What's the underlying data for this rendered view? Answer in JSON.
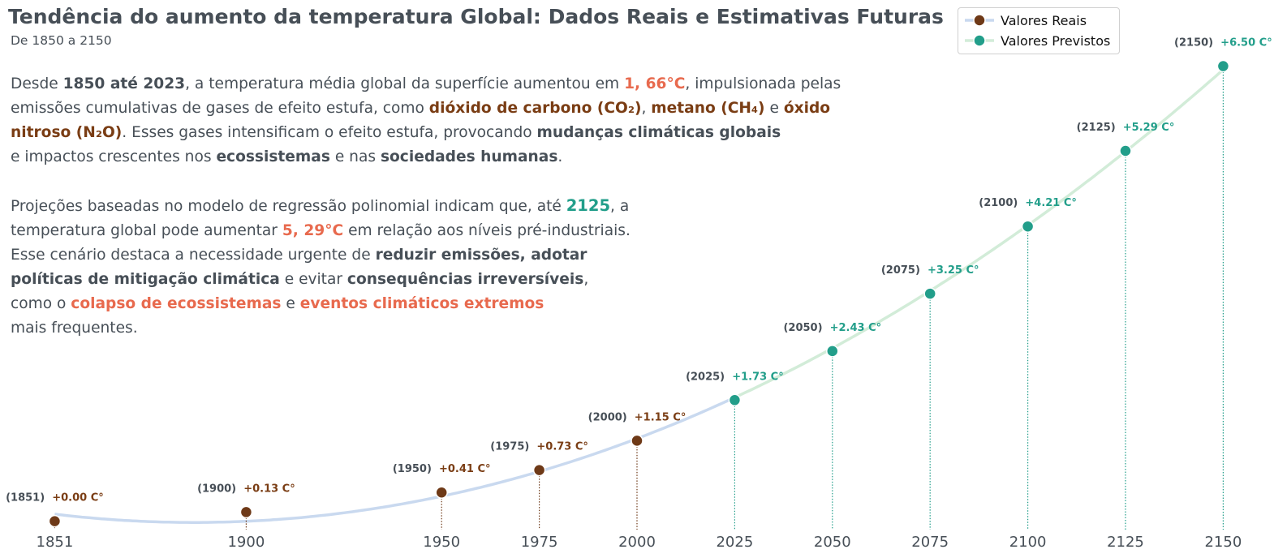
{
  "header": {
    "title": "Tendência do aumento da temperatura Global: Dados Reais e Estimativas Futuras",
    "subtitle": "De 1850 a 2150"
  },
  "text1": {
    "t0": "Desde ",
    "t1": "1850 até 2023",
    "t2": ", a temperatura média global da superfície aumentou em ",
    "t3": "1, 66°C",
    "t4": ", impulsionada pelas",
    "t5": "emissões cumulativas de gases de efeito estufa, como ",
    "t6": "dióxido de carbono (CO₂)",
    "t7": ", ",
    "t8": "metano (CH₄)",
    "t9": " e ",
    "t10": "óxido",
    "t11": "nitroso (N₂O)",
    "t12": ". Esses gases intensificam o efeito estufa, provocando ",
    "t13": "mudanças climáticas globais",
    "t14": "e impactos crescentes nos ",
    "t15": "ecossistemas",
    "t16": " e nas ",
    "t17": "sociedades humanas",
    "t18": "."
  },
  "text2": {
    "t0": "Projeções baseadas no modelo de regressão polinomial indicam que, até ",
    "t1": "2125",
    "t2": ", a",
    "t3": "temperatura global pode aumentar ",
    "t4": "5, 29°C",
    "t5": " em relação aos níveis pré-industriais.",
    "t6": "Esse cenário destaca a necessidade urgente de ",
    "t7": "reduzir emissões,  adotar",
    "t8": "políticas de mitigação climática",
    "t9": " e evitar ",
    "t10": "consequências irreversíveis",
    "t11": ",",
    "t12": "como o ",
    "t13": "colapso de ecossistemas",
    "t14": " e ",
    "t15": "eventos climáticos extremos",
    "t16": "mais frequentes."
  },
  "legend": {
    "real_label": "Valores Reais",
    "forecast_label": "Valores Previstos"
  },
  "colors": {
    "real_point": "#6e3917",
    "real_line": "#c9d9ef",
    "forecast_point": "#229e8a",
    "forecast_line": "#d2ecd8",
    "year_text": "#474f57",
    "real_value_text": "#7a3d14",
    "forecast_value_text": "#229e8a"
  },
  "chart_data": {
    "type": "line",
    "x_ticks": [
      "1851",
      "1900",
      "1950",
      "1975",
      "2000",
      "2025",
      "2050",
      "2075",
      "2100",
      "2125",
      "2150"
    ],
    "xlim": [
      1837,
      2163
    ],
    "ylim": [
      -0.12,
      6.9
    ],
    "grid": false,
    "legend_position": "top-right",
    "series": [
      {
        "name": "Valores Reais",
        "points": [
          {
            "x": 1851,
            "y": 0.0,
            "year_label": "(1851)",
            "value_label": "+0.00 C°"
          },
          {
            "x": 1900,
            "y": 0.13,
            "year_label": "(1900)",
            "value_label": "+0.13 C°"
          },
          {
            "x": 1950,
            "y": 0.41,
            "year_label": "(1950)",
            "value_label": "+0.41 C°"
          },
          {
            "x": 1975,
            "y": 0.73,
            "year_label": "(1975)",
            "value_label": "+0.73 C°"
          },
          {
            "x": 2000,
            "y": 1.15,
            "year_label": "(2000)",
            "value_label": "+1.15 C°"
          }
        ]
      },
      {
        "name": "Valores Previstos",
        "points": [
          {
            "x": 2025,
            "y": 1.73,
            "year_label": "(2025)",
            "value_label": "+1.73 C°"
          },
          {
            "x": 2050,
            "y": 2.43,
            "year_label": "(2050)",
            "value_label": "+2.43 C°"
          },
          {
            "x": 2075,
            "y": 3.25,
            "year_label": "(2075)",
            "value_label": "+3.25 C°"
          },
          {
            "x": 2100,
            "y": 4.21,
            "year_label": "(2100)",
            "value_label": "+4.21 C°"
          },
          {
            "x": 2125,
            "y": 5.29,
            "year_label": "(2125)",
            "value_label": "+5.29 C°"
          },
          {
            "x": 2150,
            "y": 6.5,
            "year_label": "(2150)",
            "value_label": "+6.50 C°"
          }
        ]
      }
    ]
  }
}
